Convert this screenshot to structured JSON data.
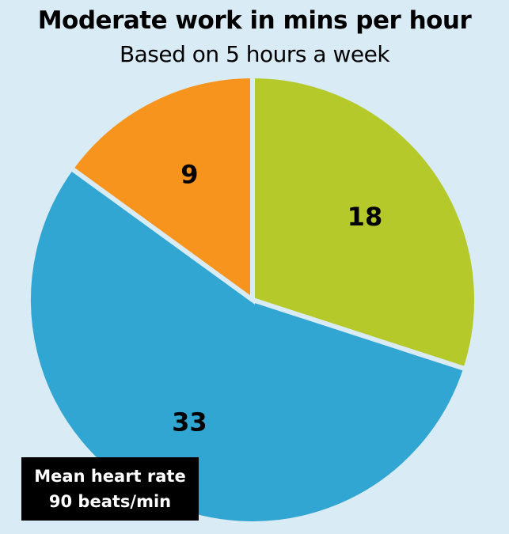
{
  "chart_data": {
    "type": "pie",
    "title": "Moderate work in mins per hour",
    "subtitle": "Based on 5 hours a week",
    "slices": [
      {
        "label": "18",
        "value": 18,
        "color": "#b5ca2a"
      },
      {
        "label": "33",
        "value": 33,
        "color": "#31a6d2"
      },
      {
        "label": "9",
        "value": 9,
        "color": "#f7941d"
      }
    ],
    "start_angle_deg": 0,
    "direction": "clockwise",
    "background_color": "#d9ebf5",
    "annotation": {
      "line1": "Mean heart rate",
      "line2": "90 beats/min"
    }
  }
}
